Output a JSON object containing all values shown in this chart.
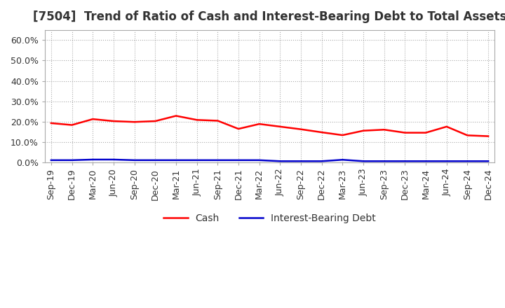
{
  "title": "[7504]  Trend of Ratio of Cash and Interest-Bearing Debt to Total Assets",
  "x_labels": [
    "Sep-19",
    "Dec-19",
    "Mar-20",
    "Jun-20",
    "Sep-20",
    "Dec-20",
    "Mar-21",
    "Jun-21",
    "Sep-21",
    "Dec-21",
    "Mar-22",
    "Jun-22",
    "Sep-22",
    "Dec-22",
    "Mar-23",
    "Jun-23",
    "Sep-23",
    "Dec-23",
    "Mar-24",
    "Jun-24",
    "Sep-24",
    "Dec-24"
  ],
  "cash": [
    0.192,
    0.183,
    0.212,
    0.202,
    0.198,
    0.202,
    0.228,
    0.208,
    0.204,
    0.164,
    0.188,
    0.175,
    0.162,
    0.147,
    0.133,
    0.155,
    0.16,
    0.145,
    0.145,
    0.175,
    0.132,
    0.128
  ],
  "interest_bearing_debt": [
    0.01,
    0.01,
    0.013,
    0.013,
    0.01,
    0.01,
    0.01,
    0.01,
    0.01,
    0.01,
    0.01,
    0.005,
    0.005,
    0.005,
    0.012,
    0.005,
    0.005,
    0.005,
    0.005,
    0.005,
    0.005,
    0.005
  ],
  "cash_color": "#FF0000",
  "debt_color": "#0000CC",
  "ylim": [
    0.0,
    0.65
  ],
  "yticks": [
    0.0,
    0.1,
    0.2,
    0.3,
    0.4,
    0.5,
    0.6
  ],
  "background_color": "#FFFFFF",
  "grid_color": "#AAAAAA",
  "title_fontsize": 12,
  "tick_fontsize": 9,
  "legend_labels": [
    "Cash",
    "Interest-Bearing Debt"
  ]
}
